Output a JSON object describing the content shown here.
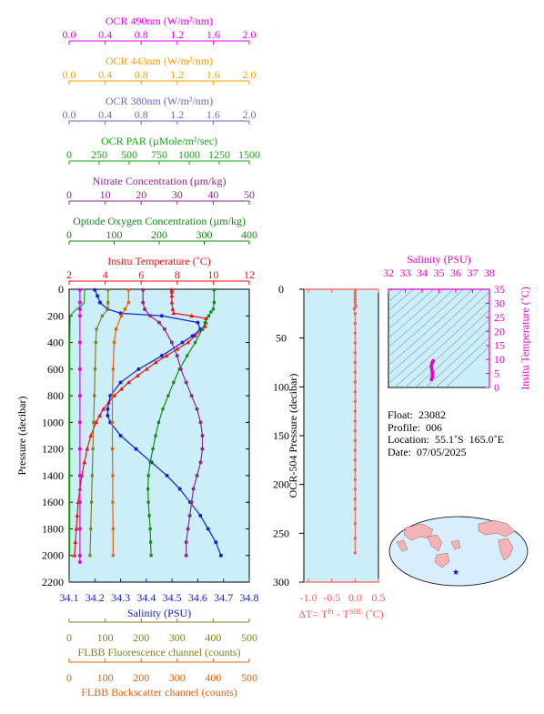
{
  "colors": {
    "ocr490": "#ee00ee",
    "ocr443": "#f5a000",
    "ocr380": "#6a6ab8",
    "par": "#11aa11",
    "nitrate": "#8e2a8e",
    "oxygen": "#138a13",
    "temp": "#ee1111",
    "salinity": "#1122dd",
    "fluor": "#808020",
    "backscatter": "#e06410",
    "tsdiag": "#e800c8",
    "delta": "#ff5a5a",
    "panel": "#cceef8"
  },
  "top_axes": [
    {
      "id": "ocr490",
      "label": "OCR 490nm (W/m²/nm)",
      "ticks": [
        "0.0",
        "0.4",
        "0.8",
        "1.2",
        "1.6",
        "2.0"
      ],
      "colorKey": "ocr490"
    },
    {
      "id": "ocr443",
      "label": "OCR 443nm (W/m²/nm)",
      "ticks": [
        "0.0",
        "0.4",
        "0.8",
        "1.2",
        "1.6",
        "2.0"
      ],
      "colorKey": "ocr443"
    },
    {
      "id": "ocr380",
      "label": "OCR 380nm (W/m²/nm)",
      "ticks": [
        "0.0",
        "0.4",
        "0.8",
        "1.2",
        "1.6",
        "2.0"
      ],
      "colorKey": "ocr380"
    },
    {
      "id": "par",
      "label": "OCR PAR (µMole/m²/sec)",
      "ticks": [
        "0",
        "250",
        "500",
        "750",
        "1000",
        "1250",
        "1500"
      ],
      "colorKey": "par"
    },
    {
      "id": "nitrate",
      "label": "Nitrate Concentration (µm/kg)",
      "ticks": [
        "0",
        "10",
        "20",
        "30",
        "40",
        "50"
      ],
      "colorKey": "nitrate"
    },
    {
      "id": "oxygen",
      "label": "Optode Oxygen Concentration (µm/kg)",
      "ticks": [
        "0",
        "100",
        "200",
        "300",
        "400"
      ],
      "colorKey": "oxygen"
    },
    {
      "id": "temp",
      "label": "Insitu Temperature (˚C)",
      "ticks": [
        "2",
        "4",
        "6",
        "8",
        "10",
        "12"
      ],
      "colorKey": "temp"
    }
  ],
  "bottom_axes": [
    {
      "id": "salinity",
      "label": "Salinity (PSU)",
      "ticks": [
        "34.1",
        "34.2",
        "34.3",
        "34.4",
        "34.5",
        "34.6",
        "34.7",
        "34.8"
      ],
      "colorKey": "salinity"
    },
    {
      "id": "fluor",
      "label": "FLBB Fluorescence channel (counts)",
      "ticks": [
        "0",
        "100",
        "200",
        "300",
        "400",
        "500"
      ],
      "colorKey": "fluor"
    },
    {
      "id": "backscatter",
      "label": "FLBB Backscatter channel (counts)",
      "ticks": [
        "0",
        "100",
        "200",
        "300",
        "400",
        "500"
      ],
      "colorKey": "backscatter"
    }
  ],
  "chart_data": [
    {
      "type": "line",
      "title": "",
      "ylabel": "Pressure (decibar)",
      "yticks": [
        "0",
        "200",
        "400",
        "600",
        "800",
        "1000",
        "1200",
        "1400",
        "1600",
        "1800",
        "2000",
        "2200"
      ],
      "ylim": [
        2200,
        0
      ],
      "series": [
        {
          "name": "Insitu Temperature (˚C)",
          "key": "temp",
          "xlim": [
            2,
            12
          ],
          "marker": "triangle",
          "y": [
            5,
            20,
            50,
            100,
            150,
            180,
            200,
            220,
            250,
            280,
            300,
            350,
            400,
            450,
            500,
            550,
            600,
            650,
            700,
            750,
            800,
            850,
            900,
            950,
            1000,
            1100,
            1200,
            1300,
            1400,
            1500,
            1600,
            1700,
            1800,
            1900,
            2000
          ],
          "x": [
            7.7,
            7.7,
            7.7,
            7.7,
            7.75,
            7.8,
            8.8,
            9.6,
            9.6,
            9.55,
            9.4,
            9.0,
            8.6,
            8.0,
            7.4,
            6.8,
            6.3,
            5.8,
            5.3,
            4.9,
            4.5,
            4.2,
            3.9,
            3.7,
            3.5,
            3.2,
            3.0,
            2.85,
            2.7,
            2.6,
            2.5,
            2.45,
            2.4,
            2.35,
            2.3
          ]
        },
        {
          "name": "Salinity (PSU)",
          "key": "salinity",
          "xlim": [
            34.1,
            34.8
          ],
          "marker": "circle",
          "y": [
            5,
            50,
            100,
            150,
            180,
            200,
            250,
            300,
            350,
            400,
            500,
            600,
            700,
            800,
            900,
            950,
            1000,
            1100,
            1200,
            1300,
            1400,
            1500,
            1600,
            1700,
            1800,
            1900,
            2000
          ],
          "x": [
            34.2,
            34.21,
            34.22,
            34.25,
            34.3,
            34.46,
            34.6,
            34.61,
            34.58,
            34.54,
            34.46,
            34.37,
            34.3,
            34.26,
            34.25,
            34.25,
            34.26,
            34.3,
            34.36,
            34.42,
            34.48,
            34.53,
            34.57,
            34.61,
            34.64,
            34.67,
            34.69
          ]
        },
        {
          "name": "Optode Oxygen Concentration (µm/kg)",
          "key": "oxygen",
          "xlim": [
            0,
            400
          ],
          "marker": "square",
          "y": [
            5,
            100,
            150,
            170,
            200,
            250,
            300,
            400,
            500,
            600,
            700,
            800,
            900,
            1000,
            1100,
            1200,
            1300,
            1400,
            1500,
            1600,
            1700,
            1800,
            1900,
            2000
          ],
          "x": [
            322,
            322,
            320,
            315,
            310,
            302,
            296,
            280,
            262,
            245,
            232,
            220,
            208,
            199,
            192,
            186,
            180,
            176,
            175,
            176,
            178,
            180,
            181,
            182
          ]
        },
        {
          "name": "Nitrate Concentration (µm/kg)",
          "key": "nitrate",
          "xlim": [
            0,
            50
          ],
          "marker": "circle",
          "y": [
            5,
            100,
            150,
            200,
            250,
            300,
            400,
            500,
            600,
            700,
            800,
            900,
            1000,
            1100,
            1200,
            1300,
            1400,
            1500,
            1600,
            1700,
            1800,
            1900,
            2000
          ],
          "x": [
            20.5,
            20.5,
            21,
            22.5,
            25,
            26.5,
            28.5,
            30,
            31,
            32.5,
            34,
            35.5,
            36.5,
            37,
            37,
            36.5,
            35.5,
            34.5,
            34,
            33.5,
            33,
            32.5,
            32.5
          ]
        },
        {
          "name": "OCR PAR (µMole/m²/sec)",
          "key": "par",
          "xlim": [
            0,
            1500
          ],
          "marker": "none",
          "y": [
            5,
            100,
            120,
            150,
            200,
            400,
            800,
            1200,
            1600,
            2000
          ],
          "x": [
            130,
            125,
            110,
            60,
            8,
            5,
            5,
            5,
            5,
            5
          ]
        },
        {
          "name": "OCR 490nm (W/m²/nm)",
          "key": "ocr490",
          "xlim": [
            0,
            2
          ],
          "marker": "circle",
          "y": [
            5,
            100,
            150,
            200,
            400,
            600,
            800,
            1000,
            1200,
            1400,
            1600,
            1800,
            2000,
            2050
          ],
          "x": [
            0.12,
            0.12,
            0.12,
            0.12,
            0.12,
            0.12,
            0.12,
            0.12,
            0.12,
            0.12,
            0.12,
            0.12,
            0.12,
            0.12
          ]
        },
        {
          "name": "FLBB Fluorescence channel (counts)",
          "key": "fluor",
          "xlim": [
            0,
            500
          ],
          "marker": "square",
          "y": [
            5,
            100,
            150,
            200,
            300,
            400,
            600,
            800,
            1000,
            1200,
            1400,
            1600,
            1800,
            2000
          ],
          "x": [
            108,
            108,
            108,
            92,
            76,
            74,
            72,
            70,
            68,
            66,
            64,
            62,
            60,
            58
          ]
        },
        {
          "name": "FLBB Backscatter channel (counts)",
          "key": "backscatter",
          "xlim": [
            0,
            500
          ],
          "marker": "square",
          "y": [
            5,
            100,
            150,
            200,
            300,
            400,
            600,
            800,
            1000,
            1200,
            1400,
            1600,
            1800,
            2000
          ],
          "x": [
            165,
            165,
            155,
            145,
            130,
            125,
            122,
            120,
            120,
            120,
            121,
            121,
            122,
            122
          ]
        }
      ]
    },
    {
      "type": "scatter",
      "xlabel": "ΔT= T^Pt - T^SBE (˚C)",
      "ylabel": "OCR-504 Pressure (decibar)",
      "xticks": [
        "-1.0",
        "-0.5",
        "0.0",
        "0.5"
      ],
      "yticks": [
        "0",
        "50",
        "100",
        "150",
        "200",
        "250",
        "300"
      ],
      "xlim": [
        -1.1,
        0.5
      ],
      "ylim": [
        300,
        0
      ],
      "points_x": [
        0,
        0,
        0,
        0,
        0,
        0.01,
        0.01,
        -0.02,
        0,
        0,
        0,
        0,
        0,
        0,
        0,
        0,
        0,
        0,
        0,
        0,
        0,
        0,
        0,
        0,
        0,
        0,
        0,
        0,
        0,
        0,
        0,
        0
      ],
      "points_y": [
        1,
        4,
        7,
        10,
        13,
        16,
        18,
        20,
        25,
        35,
        45,
        55,
        65,
        75,
        85,
        95,
        105,
        115,
        125,
        135,
        145,
        155,
        165,
        175,
        185,
        195,
        205,
        215,
        225,
        240,
        255,
        270
      ]
    },
    {
      "type": "scatter",
      "xlabel": "Salinity (PSU)",
      "ylabel": "Insitu Temperature (˚C)",
      "xticks": [
        "32",
        "33",
        "34",
        "35",
        "36",
        "37",
        "38"
      ],
      "yticks": [
        "0",
        "5",
        "10",
        "15",
        "20",
        "25",
        "30",
        "35"
      ],
      "xlim": [
        32,
        38
      ],
      "ylim": [
        0,
        35
      ],
      "x": [
        34.55,
        34.6,
        34.62,
        34.6,
        34.58,
        34.55,
        34.58,
        34.62,
        34.66
      ],
      "y": [
        2.8,
        3.5,
        4.5,
        5.5,
        6.5,
        7.5,
        8.5,
        9.0,
        9.6
      ]
    }
  ],
  "info": {
    "float": "Float:  23082",
    "profile": "Profile:  006",
    "location": "Location:  55.1˚S  165.0˚E",
    "date": "Date:  07/05/2025"
  },
  "map": {
    "marker": "★",
    "marker_color": "#0000ff"
  }
}
